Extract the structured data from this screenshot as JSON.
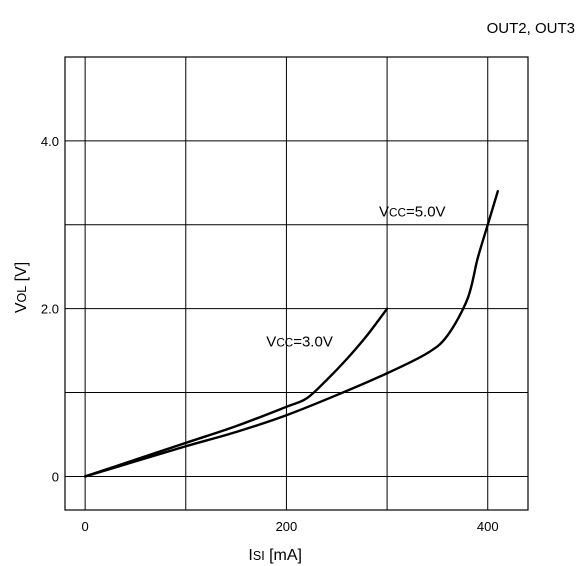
{
  "chart_data": {
    "type": "line",
    "title": "OUT2, OUT3",
    "xlabel": "ISI [mA]",
    "ylabel": "VOL [V]",
    "xlim": [
      -20,
      440
    ],
    "ylim": [
      -0.4,
      5.0
    ],
    "x_ticks": [
      0,
      200,
      400
    ],
    "x_tick_labels": [
      "0",
      "200",
      "400"
    ],
    "y_ticks": [
      0,
      2.0,
      4.0
    ],
    "y_tick_labels": [
      "0",
      "2.0",
      "4.0"
    ],
    "x_grid": [
      0,
      100,
      200,
      300,
      400
    ],
    "y_grid": [
      0,
      1.0,
      2.0,
      3.0,
      4.0
    ],
    "grid": true,
    "legend": "none",
    "series": [
      {
        "name": "VCC=3.0V",
        "x": [
          0,
          50,
          100,
          150,
          200,
          220,
          240,
          260,
          280,
          300
        ],
        "y": [
          0,
          0.2,
          0.4,
          0.6,
          0.83,
          0.93,
          1.15,
          1.4,
          1.68,
          2.0
        ]
      },
      {
        "name": "VCC=5.0V",
        "x": [
          0,
          50,
          100,
          150,
          200,
          250,
          300,
          340,
          360,
          380,
          390,
          400,
          410
        ],
        "y": [
          0,
          0.18,
          0.36,
          0.53,
          0.73,
          0.97,
          1.23,
          1.47,
          1.68,
          2.12,
          2.6,
          3.0,
          3.4
        ]
      }
    ]
  }
}
